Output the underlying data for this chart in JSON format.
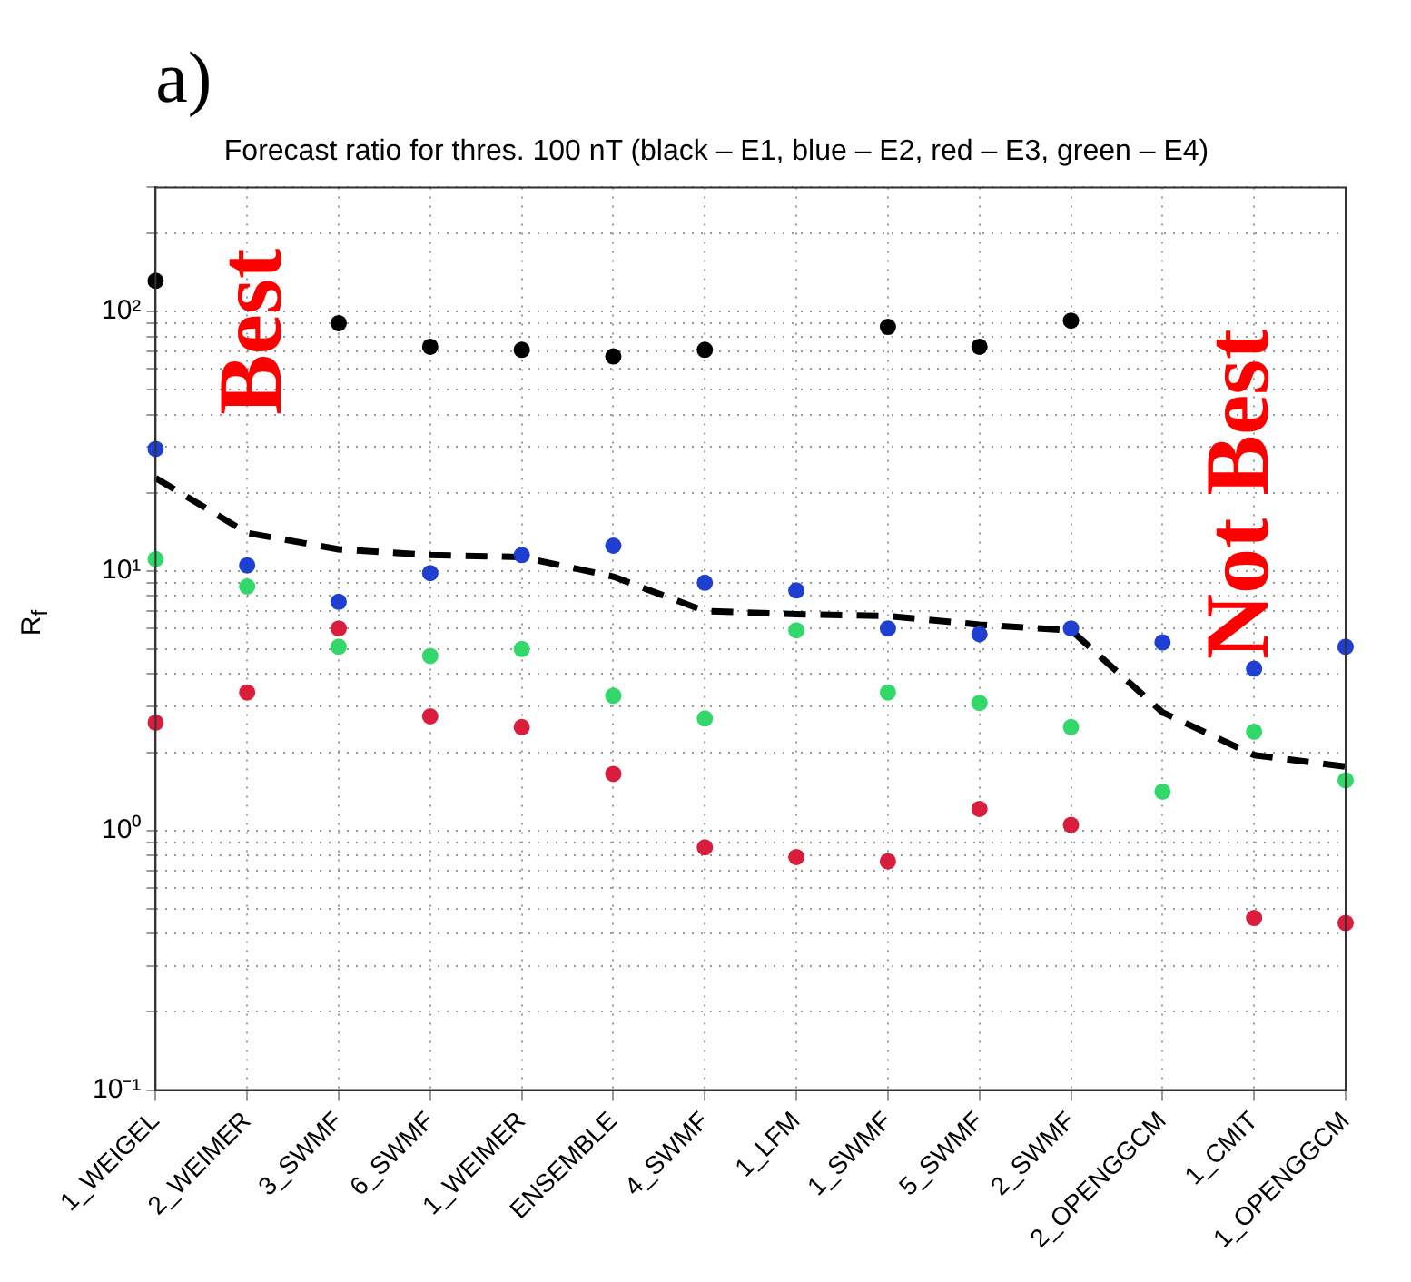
{
  "chart_data": {
    "type": "scatter",
    "title": "Forecast ratio for thres. 100 nT (black – E1, blue – E2, red – E3, green – E4)",
    "ylabel": "R$_{f}$",
    "annotations": [
      "a)",
      "Best",
      "Not Best"
    ],
    "categories": [
      "1_WEIGEL",
      "2_WEIMER",
      "3_SWMF",
      "6_SWMF",
      "1_WEIMER",
      "ENSEMBLE",
      "4_SWMF",
      "1_LFM",
      "1_SWMF",
      "5_SWMF",
      "2_SWMF",
      "2_OPENGGCM",
      "1_CMIT",
      "1_OPENGGCM"
    ],
    "log": "y",
    "ylim": [
      0.1,
      300
    ],
    "yticks": [
      {
        "value": 0.1,
        "label": "10⁻¹"
      },
      {
        "value": 0.2,
        "label": null
      },
      {
        "value": 0.3,
        "label": null
      },
      {
        "value": 0.4,
        "label": null
      },
      {
        "value": 0.5,
        "label": null
      },
      {
        "value": 0.6,
        "label": null
      },
      {
        "value": 0.7,
        "label": null
      },
      {
        "value": 0.8,
        "label": null
      },
      {
        "value": 0.9,
        "label": null
      },
      {
        "value": 1,
        "label": "10⁰"
      },
      {
        "value": 2,
        "label": null
      },
      {
        "value": 3,
        "label": null
      },
      {
        "value": 4,
        "label": null
      },
      {
        "value": 5,
        "label": null
      },
      {
        "value": 6,
        "label": null
      },
      {
        "value": 7,
        "label": null
      },
      {
        "value": 8,
        "label": null
      },
      {
        "value": 9,
        "label": null
      },
      {
        "value": 10,
        "label": "10¹"
      },
      {
        "value": 20,
        "label": null
      },
      {
        "value": 30,
        "label": null
      },
      {
        "value": 40,
        "label": null
      },
      {
        "value": 50,
        "label": null
      },
      {
        "value": 60,
        "label": null
      },
      {
        "value": 70,
        "label": null
      },
      {
        "value": 80,
        "label": null
      },
      {
        "value": 90,
        "label": null
      },
      {
        "value": 100,
        "label": "10²"
      },
      {
        "value": 200,
        "label": null
      },
      {
        "value": 300,
        "label": null
      }
    ],
    "grid": true,
    "marker": "circle",
    "series": [
      {
        "color": "#000000",
        "values": [
          131,
          null,
          90,
          73,
          71,
          67,
          71,
          null,
          87,
          73,
          92,
          null,
          null,
          null
        ]
      },
      {
        "color": "#1f3fd0",
        "values": [
          29.5,
          10.5,
          7.6,
          9.8,
          11.5,
          12.5,
          9.0,
          8.4,
          6.0,
          5.7,
          6.0,
          5.3,
          4.2,
          5.1
        ]
      },
      {
        "color": "#d81e3c",
        "values": [
          2.6,
          3.4,
          6.0,
          2.75,
          2.5,
          1.65,
          0.86,
          0.79,
          0.76,
          1.21,
          1.05,
          null,
          0.46,
          0.44
        ]
      },
      {
        "color": "#33d86a",
        "values": [
          11.1,
          8.7,
          5.1,
          4.7,
          5.0,
          3.3,
          2.7,
          5.9,
          3.4,
          3.1,
          2.5,
          1.41,
          2.4,
          1.56
        ]
      },
      {
        "type": "line",
        "color": "#000000",
        "marker": "none",
        "line_style": "dashed",
        "values": [
          22.8,
          14,
          12.1,
          11.5,
          11.3,
          9.5,
          7.0,
          6.8,
          6.7,
          6.2,
          5.9,
          2.85,
          1.95,
          1.76
        ]
      }
    ]
  }
}
